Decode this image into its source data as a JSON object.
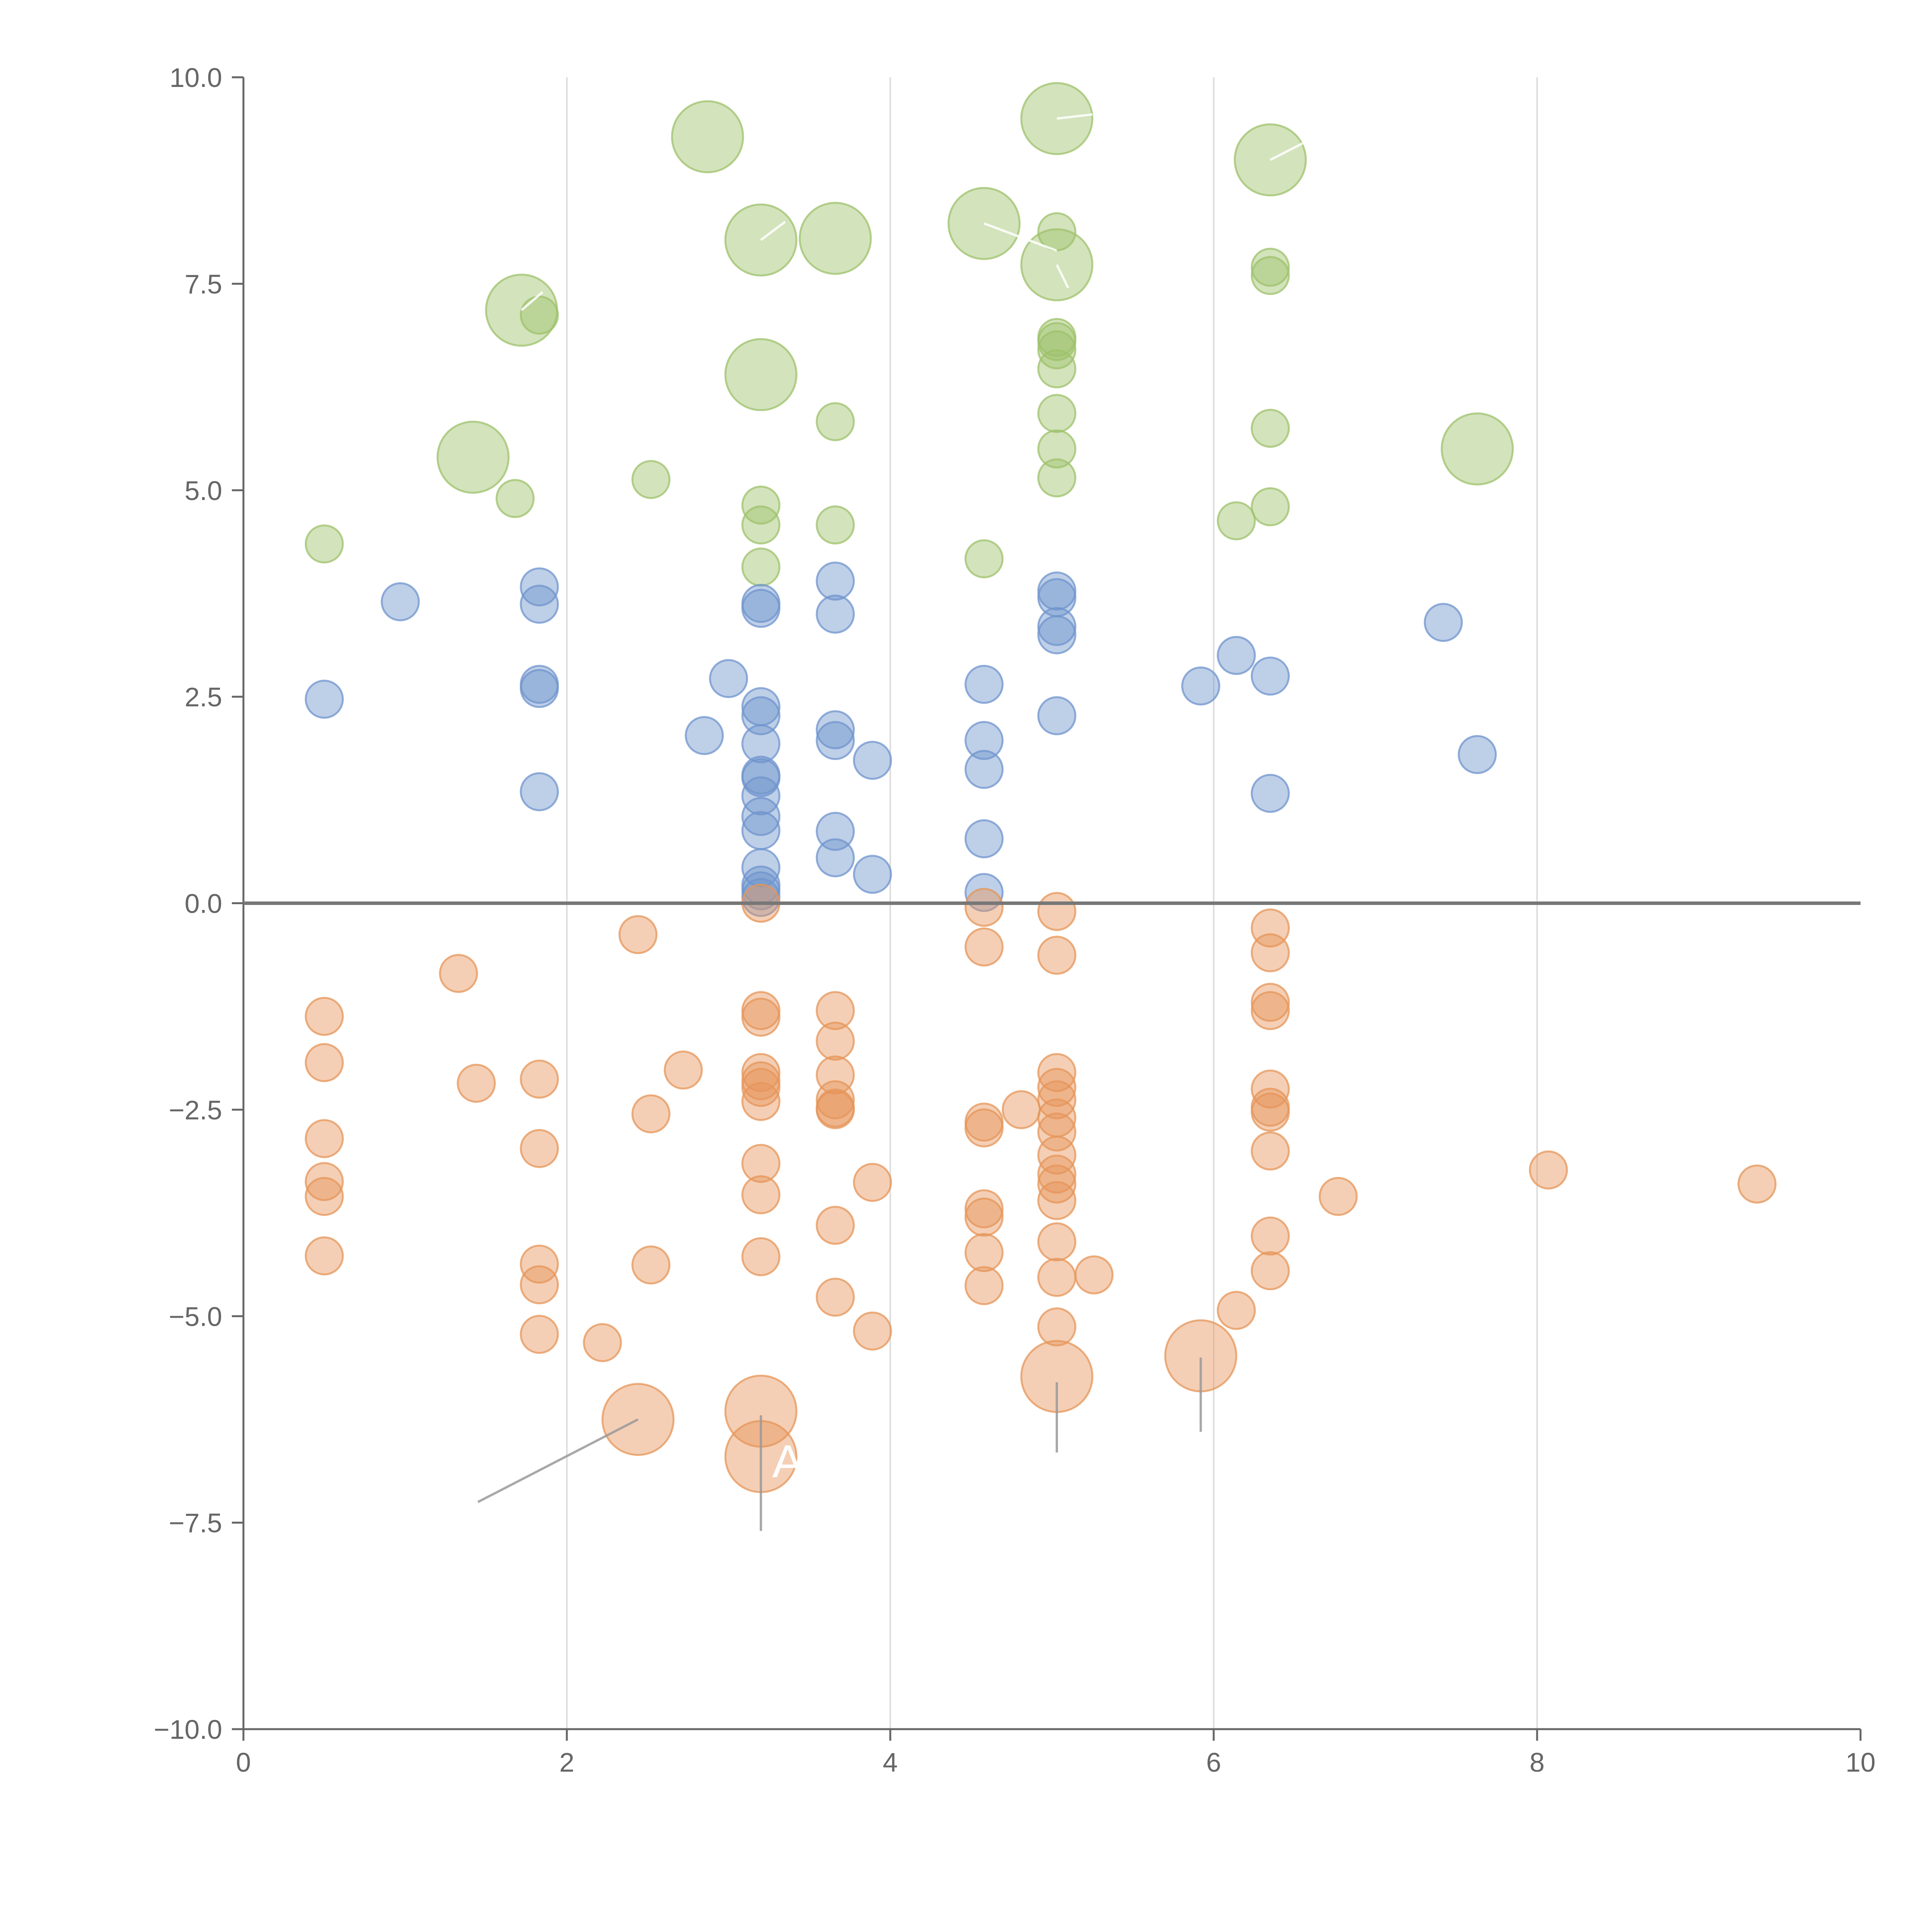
{
  "chart_data": {
    "type": "scatter",
    "title": "",
    "xlabel": "",
    "ylabel": "",
    "xlim": [
      0,
      10
    ],
    "ylim": [
      -10,
      10
    ],
    "x_ticks": [
      "0",
      "2",
      "4",
      "6",
      "8",
      "10"
    ],
    "y_ticks": [
      "−10.0",
      "−7.5",
      "−5.0",
      "−2.5",
      "0.0",
      "2.5",
      "5.0",
      "7.5",
      "10.0"
    ],
    "grid": "vertical",
    "legend": "none",
    "colors": {
      "green": "#9dc16b",
      "blue": "#6f94cd",
      "orange": "#e6955a",
      "axis": "#666666",
      "zero_line": "#777777",
      "grid": "#dddddd",
      "leader": "#999999"
    },
    "series": [
      {
        "name": "green",
        "color": "#9dc16b",
        "points": [
          {
            "x": 0.5,
            "y": 4.35,
            "size": 1
          },
          {
            "x": 1.42,
            "y": 5.4,
            "size": 2
          },
          {
            "x": 1.68,
            "y": 4.9,
            "size": 1
          },
          {
            "x": 1.72,
            "y": 7.18,
            "size": 2
          },
          {
            "x": 1.83,
            "y": 7.12,
            "size": 1
          },
          {
            "x": 2.52,
            "y": 5.13,
            "size": 1
          },
          {
            "x": 2.87,
            "y": 9.28,
            "size": 2
          },
          {
            "x": 3.2,
            "y": 8.03,
            "size": 2
          },
          {
            "x": 3.2,
            "y": 6.4,
            "size": 2
          },
          {
            "x": 3.2,
            "y": 4.82,
            "size": 1
          },
          {
            "x": 3.2,
            "y": 4.58,
            "size": 1
          },
          {
            "x": 3.2,
            "y": 4.07,
            "size": 1
          },
          {
            "x": 3.66,
            "y": 8.05,
            "size": 2
          },
          {
            "x": 3.66,
            "y": 5.83,
            "size": 1
          },
          {
            "x": 3.66,
            "y": 4.58,
            "size": 1
          },
          {
            "x": 4.58,
            "y": 8.23,
            "size": 2
          },
          {
            "x": 4.58,
            "y": 4.17,
            "size": 1
          },
          {
            "x": 5.03,
            "y": 9.5,
            "size": 2
          },
          {
            "x": 5.03,
            "y": 8.13,
            "size": 1
          },
          {
            "x": 5.03,
            "y": 7.73,
            "size": 2
          },
          {
            "x": 5.03,
            "y": 6.85,
            "size": 1
          },
          {
            "x": 5.03,
            "y": 6.8,
            "size": 1
          },
          {
            "x": 5.03,
            "y": 6.7,
            "size": 1
          },
          {
            "x": 5.03,
            "y": 6.47,
            "size": 1
          },
          {
            "x": 5.03,
            "y": 5.93,
            "size": 1
          },
          {
            "x": 5.03,
            "y": 5.5,
            "size": 1
          },
          {
            "x": 5.03,
            "y": 5.15,
            "size": 1
          },
          {
            "x": 6.14,
            "y": 4.63,
            "size": 1
          },
          {
            "x": 6.35,
            "y": 9.0,
            "size": 2
          },
          {
            "x": 6.35,
            "y": 7.7,
            "size": 1
          },
          {
            "x": 6.35,
            "y": 7.6,
            "size": 1
          },
          {
            "x": 6.35,
            "y": 5.75,
            "size": 1
          },
          {
            "x": 6.35,
            "y": 4.8,
            "size": 1
          },
          {
            "x": 7.63,
            "y": 5.5,
            "size": 2
          }
        ]
      },
      {
        "name": "blue",
        "color": "#6f94cd",
        "points": [
          {
            "x": 0.5,
            "y": 2.47,
            "size": 1
          },
          {
            "x": 0.97,
            "y": 3.65,
            "size": 1
          },
          {
            "x": 1.83,
            "y": 3.83,
            "size": 1
          },
          {
            "x": 1.83,
            "y": 3.62,
            "size": 1
          },
          {
            "x": 1.83,
            "y": 2.65,
            "size": 1
          },
          {
            "x": 1.83,
            "y": 2.6,
            "size": 1
          },
          {
            "x": 1.83,
            "y": 1.35,
            "size": 1
          },
          {
            "x": 2.85,
            "y": 2.03,
            "size": 1
          },
          {
            "x": 3.0,
            "y": 2.72,
            "size": 1
          },
          {
            "x": 3.2,
            "y": 3.63,
            "size": 1
          },
          {
            "x": 3.2,
            "y": 3.57,
            "size": 1
          },
          {
            "x": 3.2,
            "y": 2.38,
            "size": 1
          },
          {
            "x": 3.2,
            "y": 2.27,
            "size": 1
          },
          {
            "x": 3.2,
            "y": 1.93,
            "size": 1
          },
          {
            "x": 3.2,
            "y": 1.55,
            "size": 1
          },
          {
            "x": 3.2,
            "y": 1.52,
            "size": 1
          },
          {
            "x": 3.2,
            "y": 1.3,
            "size": 1
          },
          {
            "x": 3.2,
            "y": 1.05,
            "size": 1
          },
          {
            "x": 3.2,
            "y": 0.88,
            "size": 1
          },
          {
            "x": 3.2,
            "y": 0.43,
            "size": 1
          },
          {
            "x": 3.2,
            "y": 0.22,
            "size": 1
          },
          {
            "x": 3.2,
            "y": 0.15,
            "size": 1
          },
          {
            "x": 3.2,
            "y": 0.07,
            "size": 1
          },
          {
            "x": 3.66,
            "y": 3.9,
            "size": 1
          },
          {
            "x": 3.66,
            "y": 3.5,
            "size": 1
          },
          {
            "x": 3.66,
            "y": 2.1,
            "size": 1
          },
          {
            "x": 3.66,
            "y": 1.97,
            "size": 1
          },
          {
            "x": 3.66,
            "y": 0.87,
            "size": 1
          },
          {
            "x": 3.66,
            "y": 0.55,
            "size": 1
          },
          {
            "x": 3.89,
            "y": 1.73,
            "size": 1
          },
          {
            "x": 3.89,
            "y": 0.35,
            "size": 1
          },
          {
            "x": 4.58,
            "y": 2.65,
            "size": 1
          },
          {
            "x": 4.58,
            "y": 1.97,
            "size": 1
          },
          {
            "x": 4.58,
            "y": 1.62,
            "size": 1
          },
          {
            "x": 4.58,
            "y": 0.78,
            "size": 1
          },
          {
            "x": 4.58,
            "y": 0.13,
            "size": 1
          },
          {
            "x": 5.03,
            "y": 3.78,
            "size": 1
          },
          {
            "x": 5.03,
            "y": 3.7,
            "size": 1
          },
          {
            "x": 5.03,
            "y": 3.35,
            "size": 1
          },
          {
            "x": 5.03,
            "y": 3.25,
            "size": 1
          },
          {
            "x": 5.03,
            "y": 2.27,
            "size": 1
          },
          {
            "x": 5.92,
            "y": 2.63,
            "size": 1
          },
          {
            "x": 6.14,
            "y": 3.0,
            "size": 1
          },
          {
            "x": 6.35,
            "y": 2.75,
            "size": 1
          },
          {
            "x": 6.35,
            "y": 1.33,
            "size": 1
          },
          {
            "x": 7.42,
            "y": 3.4,
            "size": 1
          },
          {
            "x": 7.63,
            "y": 1.8,
            "size": 1
          }
        ]
      },
      {
        "name": "orange",
        "color": "#e6955a",
        "points": [
          {
            "x": 0.5,
            "y": -1.37,
            "size": 1
          },
          {
            "x": 0.5,
            "y": -1.93,
            "size": 1
          },
          {
            "x": 0.5,
            "y": -2.85,
            "size": 1
          },
          {
            "x": 0.5,
            "y": -3.37,
            "size": 1
          },
          {
            "x": 0.5,
            "y": -3.55,
            "size": 1
          },
          {
            "x": 0.5,
            "y": -4.27,
            "size": 1
          },
          {
            "x": 1.33,
            "y": -0.85,
            "size": 1
          },
          {
            "x": 1.44,
            "y": -2.18,
            "size": 1
          },
          {
            "x": 1.83,
            "y": -2.13,
            "size": 1
          },
          {
            "x": 1.83,
            "y": -2.97,
            "size": 1
          },
          {
            "x": 1.83,
            "y": -4.37,
            "size": 1
          },
          {
            "x": 1.83,
            "y": -4.62,
            "size": 1
          },
          {
            "x": 1.83,
            "y": -5.22,
            "size": 1
          },
          {
            "x": 2.22,
            "y": -5.32,
            "size": 1
          },
          {
            "x": 2.44,
            "y": -6.25,
            "size": 2
          },
          {
            "x": 2.44,
            "y": -0.38,
            "size": 1
          },
          {
            "x": 2.52,
            "y": -2.55,
            "size": 1
          },
          {
            "x": 2.52,
            "y": -4.38,
            "size": 1
          },
          {
            "x": 2.72,
            "y": -2.02,
            "size": 1
          },
          {
            "x": 3.2,
            "y": 0.0,
            "size": 1
          },
          {
            "x": 3.2,
            "y": -1.3,
            "size": 1
          },
          {
            "x": 3.2,
            "y": -1.38,
            "size": 1
          },
          {
            "x": 3.2,
            "y": -2.05,
            "size": 1
          },
          {
            "x": 3.2,
            "y": -2.15,
            "size": 1
          },
          {
            "x": 3.2,
            "y": -2.23,
            "size": 1
          },
          {
            "x": 3.2,
            "y": -2.4,
            "size": 1
          },
          {
            "x": 3.2,
            "y": -3.15,
            "size": 1
          },
          {
            "x": 3.2,
            "y": -3.53,
            "size": 1
          },
          {
            "x": 3.2,
            "y": -4.28,
            "size": 1
          },
          {
            "x": 3.2,
            "y": -6.15,
            "size": 2
          },
          {
            "x": 3.2,
            "y": -6.7,
            "size": 2
          },
          {
            "x": 3.66,
            "y": -1.3,
            "size": 1
          },
          {
            "x": 3.66,
            "y": -1.67,
            "size": 1
          },
          {
            "x": 3.66,
            "y": -2.08,
            "size": 1
          },
          {
            "x": 3.66,
            "y": -2.38,
            "size": 1
          },
          {
            "x": 3.66,
            "y": -2.48,
            "size": 1
          },
          {
            "x": 3.66,
            "y": -2.5,
            "size": 1
          },
          {
            "x": 3.66,
            "y": -3.9,
            "size": 1
          },
          {
            "x": 3.66,
            "y": -4.77,
            "size": 1
          },
          {
            "x": 3.89,
            "y": -3.38,
            "size": 1
          },
          {
            "x": 3.89,
            "y": -5.18,
            "size": 1
          },
          {
            "x": 4.58,
            "y": -0.05,
            "size": 1
          },
          {
            "x": 4.58,
            "y": -0.53,
            "size": 1
          },
          {
            "x": 4.58,
            "y": -2.65,
            "size": 1
          },
          {
            "x": 4.58,
            "y": -2.72,
            "size": 1
          },
          {
            "x": 4.58,
            "y": -3.7,
            "size": 1
          },
          {
            "x": 4.58,
            "y": -3.8,
            "size": 1
          },
          {
            "x": 4.58,
            "y": -4.23,
            "size": 1
          },
          {
            "x": 4.58,
            "y": -4.63,
            "size": 1
          },
          {
            "x": 4.81,
            "y": -2.5,
            "size": 1
          },
          {
            "x": 5.03,
            "y": -0.1,
            "size": 1
          },
          {
            "x": 5.03,
            "y": -0.63,
            "size": 1
          },
          {
            "x": 5.03,
            "y": -2.05,
            "size": 1
          },
          {
            "x": 5.03,
            "y": -2.23,
            "size": 1
          },
          {
            "x": 5.03,
            "y": -2.38,
            "size": 1
          },
          {
            "x": 5.03,
            "y": -2.6,
            "size": 1
          },
          {
            "x": 5.03,
            "y": -2.77,
            "size": 1
          },
          {
            "x": 5.03,
            "y": -3.05,
            "size": 1
          },
          {
            "x": 5.03,
            "y": -3.28,
            "size": 1
          },
          {
            "x": 5.03,
            "y": -3.4,
            "size": 1
          },
          {
            "x": 5.03,
            "y": -3.6,
            "size": 1
          },
          {
            "x": 5.03,
            "y": -4.1,
            "size": 1
          },
          {
            "x": 5.03,
            "y": -4.53,
            "size": 1
          },
          {
            "x": 5.03,
            "y": -5.13,
            "size": 1
          },
          {
            "x": 5.03,
            "y": -5.73,
            "size": 2
          },
          {
            "x": 5.26,
            "y": -4.5,
            "size": 1
          },
          {
            "x": 5.92,
            "y": -5.48,
            "size": 2
          },
          {
            "x": 6.14,
            "y": -4.93,
            "size": 1
          },
          {
            "x": 6.35,
            "y": -0.3,
            "size": 1
          },
          {
            "x": 6.35,
            "y": -0.6,
            "size": 1
          },
          {
            "x": 6.35,
            "y": -1.2,
            "size": 1
          },
          {
            "x": 6.35,
            "y": -1.3,
            "size": 1
          },
          {
            "x": 6.35,
            "y": -2.25,
            "size": 1
          },
          {
            "x": 6.35,
            "y": -2.47,
            "size": 1
          },
          {
            "x": 6.35,
            "y": -2.53,
            "size": 1
          },
          {
            "x": 6.35,
            "y": -3.0,
            "size": 1
          },
          {
            "x": 6.35,
            "y": -4.03,
            "size": 1
          },
          {
            "x": 6.35,
            "y": -4.45,
            "size": 1
          },
          {
            "x": 6.77,
            "y": -3.55,
            "size": 1
          },
          {
            "x": 8.07,
            "y": -3.23,
            "size": 1
          },
          {
            "x": 9.36,
            "y": -3.4,
            "size": 1
          }
        ]
      }
    ],
    "annotations": [
      {
        "text": "A",
        "x": 3.27,
        "y": -6.95
      }
    ],
    "leader_lines": [
      {
        "series": "orange",
        "from": [
          2.44,
          -6.25
        ],
        "to": [
          1.45,
          -7.25
        ]
      },
      {
        "series": "orange",
        "from": [
          3.2,
          -6.2
        ],
        "to": [
          3.2,
          -7.6
        ]
      },
      {
        "series": "orange",
        "from": [
          5.03,
          -5.8
        ],
        "to": [
          5.03,
          -6.65
        ]
      },
      {
        "series": "orange",
        "from": [
          5.92,
          -5.5
        ],
        "to": [
          5.92,
          -6.4
        ]
      },
      {
        "series": "green",
        "from": [
          1.72,
          7.18
        ],
        "to": [
          1.85,
          7.4
        ]
      },
      {
        "series": "green",
        "from": [
          3.2,
          8.03
        ],
        "to": [
          3.35,
          8.25
        ]
      },
      {
        "series": "green",
        "from": [
          4.58,
          8.23
        ],
        "to": [
          5.03,
          7.9
        ]
      },
      {
        "series": "green",
        "from": [
          5.03,
          7.73
        ],
        "to": [
          5.1,
          7.45
        ]
      },
      {
        "series": "green",
        "from": [
          5.03,
          9.5
        ],
        "to": [
          5.25,
          9.55
        ]
      },
      {
        "series": "green",
        "from": [
          6.35,
          9.0
        ],
        "to": [
          6.55,
          9.2
        ]
      }
    ]
  }
}
